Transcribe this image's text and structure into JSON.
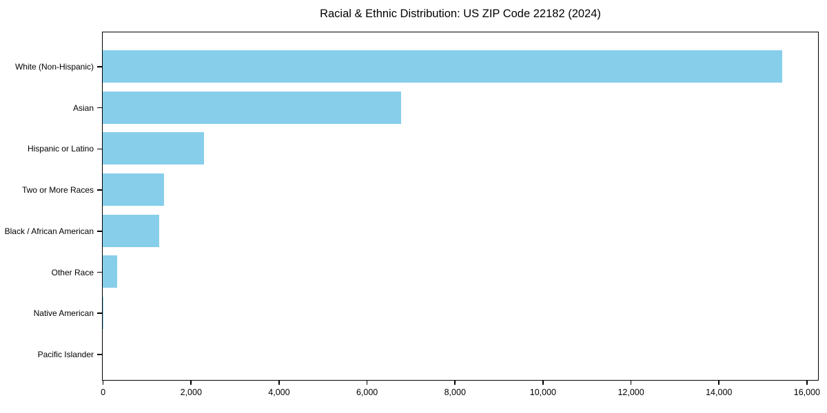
{
  "chart_data": {
    "type": "bar",
    "orientation": "horizontal",
    "title": "Racial & Ethnic Distribution: US ZIP Code 22182 (2024)",
    "categories": [
      "White (Non-Hispanic)",
      "Asian",
      "Hispanic or Latino",
      "Two or More Races",
      "Black / African American",
      "Other Race",
      "Native American",
      "Pacific Islander"
    ],
    "values": [
      15450,
      6780,
      2310,
      1390,
      1290,
      330,
      20,
      0
    ],
    "xlabel": "",
    "ylabel": "",
    "xlim": [
      0,
      16250
    ],
    "xticks": [
      0,
      2000,
      4000,
      6000,
      8000,
      10000,
      12000,
      14000,
      16000
    ],
    "xtick_labels": [
      "0",
      "2,000",
      "4,000",
      "6,000",
      "8,000",
      "10,000",
      "12,000",
      "14,000",
      "16,000"
    ],
    "bar_color": "#87CEEB",
    "axis_color": "#000000",
    "text_color": "#000000",
    "background": "#FFFFFF",
    "grid": false,
    "legend": null
  }
}
